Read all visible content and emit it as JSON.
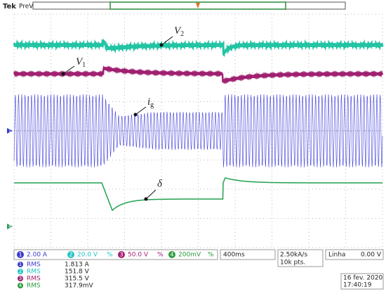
{
  "header": {
    "brand": "Tek",
    "mode": "PreVis"
  },
  "annotations": {
    "v2": {
      "main": "V",
      "sub": "2"
    },
    "v1": {
      "main": "V",
      "sub": "1"
    },
    "ig": {
      "main": "i",
      "sub": "g"
    },
    "delta": {
      "main": "δ"
    }
  },
  "markers": {
    "ch1": "1",
    "ch4": "4"
  },
  "channels": [
    {
      "number": "1",
      "scale": "2.00 A"
    },
    {
      "number": "2",
      "scale": "20.0 V",
      "flag": "%"
    },
    {
      "number": "3",
      "scale": "50.0 V",
      "flag": "%"
    },
    {
      "number": "4",
      "scale": "200mV",
      "flag": "%"
    }
  ],
  "timebase": {
    "scale": "400ms",
    "rate": "2.50kA/s",
    "points": "10k pts."
  },
  "trigger": {
    "source": "Linha",
    "level": "0.00 V"
  },
  "measurements": [
    {
      "channel": "1",
      "type": "RMS",
      "value": "1.813 A"
    },
    {
      "channel": "2",
      "type": "RMS",
      "value": "151.8 V"
    },
    {
      "channel": "3",
      "type": "RMS",
      "value": "315.5 V"
    },
    {
      "channel": "4",
      "type": "RMS",
      "value": "317.9mV"
    }
  ],
  "clock": {
    "date": "16 fev. 2020",
    "time": "17:40:19"
  }
}
